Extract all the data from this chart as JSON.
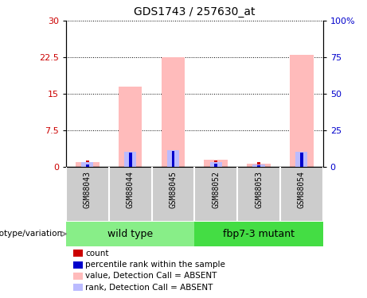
{
  "title": "GDS1743 / 257630_at",
  "samples": [
    "GSM88043",
    "GSM88044",
    "GSM88045",
    "GSM88052",
    "GSM88053",
    "GSM88054"
  ],
  "group_wt": {
    "name": "wild type",
    "indices": [
      0,
      1,
      2
    ],
    "color": "#88ee88"
  },
  "group_mut": {
    "name": "fbp7-3 mutant",
    "indices": [
      3,
      4,
      5
    ],
    "color": "#44dd44"
  },
  "value_bars": [
    1.0,
    16.5,
    22.5,
    1.5,
    0.7,
    23.0
  ],
  "rank_bars": [
    3.0,
    10.5,
    11.5,
    3.5,
    1.5,
    10.5
  ],
  "count_heights": [
    1.3,
    0.7,
    0.6,
    1.3,
    0.9,
    0.6
  ],
  "percentile_heights": [
    1.8,
    10.0,
    10.7,
    2.4,
    1.2,
    10.0
  ],
  "ylim_left": [
    0,
    30
  ],
  "ylim_right": [
    0,
    100
  ],
  "yticks_left": [
    0,
    7.5,
    15,
    22.5,
    30
  ],
  "yticks_right": [
    0,
    25,
    50,
    75,
    100
  ],
  "ytick_labels_left": [
    "0",
    "7.5",
    "15",
    "22.5",
    "30"
  ],
  "ytick_labels_right": [
    "0",
    "25",
    "50",
    "75",
    "100%"
  ],
  "value_bar_color": "#ffbbbb",
  "rank_bar_color": "#bbbbff",
  "count_color": "#cc0000",
  "percentile_color": "#0000cc",
  "label_bg_color": "#cccccc",
  "label_border_color": "#ffffff",
  "geno_label": "genotype/variation",
  "legend_items": [
    {
      "label": "count",
      "color": "#cc0000"
    },
    {
      "label": "percentile rank within the sample",
      "color": "#0000cc"
    },
    {
      "label": "value, Detection Call = ABSENT",
      "color": "#ffbbbb"
    },
    {
      "label": "rank, Detection Call = ABSENT",
      "color": "#bbbbff"
    }
  ]
}
